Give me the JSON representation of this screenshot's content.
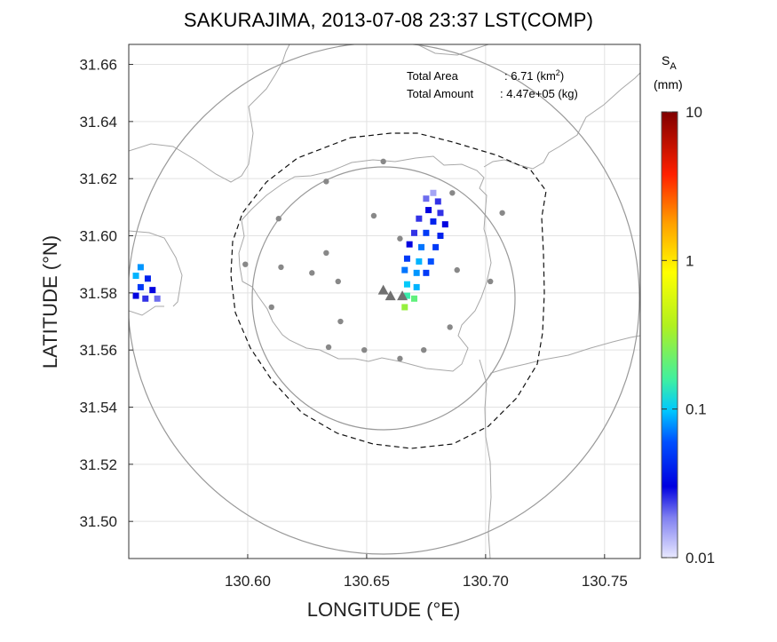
{
  "title": "SAKURAJIMA, 2013-07-08 23:37 LST(COMP)",
  "annotations": {
    "area_label": "Total Area",
    "area_value": ": 6.71 (km",
    "area_exp": "2",
    "area_close": ")",
    "amount_label": "Total Amount",
    "amount_value": ": 4.47e+05 (kg)"
  },
  "colorbar": {
    "title_s": "S",
    "title_sub": "A",
    "unit": "(mm)",
    "ticks": [
      "10",
      "1",
      "0.1",
      "0.01"
    ],
    "scale": "log"
  },
  "chart_data": {
    "type": "heatmap",
    "xlabel": "LONGITUDE (°E)",
    "ylabel": "LATITUDE (°N)",
    "xlim": [
      130.55,
      130.765
    ],
    "ylim": [
      31.487,
      31.667
    ],
    "xticks": [
      "130.60",
      "130.65",
      "130.70",
      "130.75"
    ],
    "yticks": [
      "31.66",
      "31.64",
      "31.62",
      "31.60",
      "31.58",
      "31.56",
      "31.54",
      "31.52",
      "31.50"
    ],
    "grid": true,
    "color_scale": {
      "min": 0.01,
      "max": 10,
      "log": true
    },
    "deposit_cells": [
      {
        "lon": 130.678,
        "lat": 31.615,
        "value": 0.015
      },
      {
        "lon": 130.675,
        "lat": 31.613,
        "value": 0.02
      },
      {
        "lon": 130.68,
        "lat": 31.612,
        "value": 0.025
      },
      {
        "lon": 130.676,
        "lat": 31.609,
        "value": 0.03
      },
      {
        "lon": 130.681,
        "lat": 31.608,
        "value": 0.025
      },
      {
        "lon": 130.672,
        "lat": 31.606,
        "value": 0.025
      },
      {
        "lon": 130.678,
        "lat": 31.605,
        "value": 0.04
      },
      {
        "lon": 130.683,
        "lat": 31.604,
        "value": 0.03
      },
      {
        "lon": 130.67,
        "lat": 31.601,
        "value": 0.025
      },
      {
        "lon": 130.675,
        "lat": 31.601,
        "value": 0.05
      },
      {
        "lon": 130.681,
        "lat": 31.6,
        "value": 0.04
      },
      {
        "lon": 130.668,
        "lat": 31.597,
        "value": 0.03
      },
      {
        "lon": 130.673,
        "lat": 31.596,
        "value": 0.07
      },
      {
        "lon": 130.679,
        "lat": 31.596,
        "value": 0.05
      },
      {
        "lon": 130.667,
        "lat": 31.592,
        "value": 0.05
      },
      {
        "lon": 130.672,
        "lat": 31.591,
        "value": 0.09
      },
      {
        "lon": 130.677,
        "lat": 31.591,
        "value": 0.06
      },
      {
        "lon": 130.666,
        "lat": 31.588,
        "value": 0.07
      },
      {
        "lon": 130.671,
        "lat": 31.587,
        "value": 0.08
      },
      {
        "lon": 130.675,
        "lat": 31.587,
        "value": 0.05
      },
      {
        "lon": 130.667,
        "lat": 31.583,
        "value": 0.1
      },
      {
        "lon": 130.671,
        "lat": 31.582,
        "value": 0.09
      },
      {
        "lon": 130.667,
        "lat": 31.579,
        "value": 0.15
      },
      {
        "lon": 130.67,
        "lat": 31.578,
        "value": 0.2
      },
      {
        "lon": 130.666,
        "lat": 31.575,
        "value": 0.3
      },
      {
        "lon": 130.555,
        "lat": 31.589,
        "value": 0.08
      },
      {
        "lon": 130.553,
        "lat": 31.586,
        "value": 0.09
      },
      {
        "lon": 130.558,
        "lat": 31.585,
        "value": 0.04
      },
      {
        "lon": 130.555,
        "lat": 31.582,
        "value": 0.05
      },
      {
        "lon": 130.56,
        "lat": 31.581,
        "value": 0.03
      },
      {
        "lon": 130.553,
        "lat": 31.579,
        "value": 0.03
      },
      {
        "lon": 130.557,
        "lat": 31.578,
        "value": 0.025
      },
      {
        "lon": 130.562,
        "lat": 31.578,
        "value": 0.02
      }
    ],
    "stations": [
      {
        "lon": 130.657,
        "lat": 31.626
      },
      {
        "lon": 130.633,
        "lat": 31.619
      },
      {
        "lon": 130.686,
        "lat": 31.615
      },
      {
        "lon": 130.707,
        "lat": 31.608
      },
      {
        "lon": 130.613,
        "lat": 31.606
      },
      {
        "lon": 130.653,
        "lat": 31.607
      },
      {
        "lon": 130.664,
        "lat": 31.599
      },
      {
        "lon": 130.633,
        "lat": 31.594
      },
      {
        "lon": 130.599,
        "lat": 31.59
      },
      {
        "lon": 130.614,
        "lat": 31.589
      },
      {
        "lon": 130.627,
        "lat": 31.587
      },
      {
        "lon": 130.638,
        "lat": 31.584
      },
      {
        "lon": 130.688,
        "lat": 31.588
      },
      {
        "lon": 130.702,
        "lat": 31.584
      },
      {
        "lon": 130.61,
        "lat": 31.575
      },
      {
        "lon": 130.639,
        "lat": 31.57
      },
      {
        "lon": 130.685,
        "lat": 31.568
      },
      {
        "lon": 130.634,
        "lat": 31.561
      },
      {
        "lon": 130.649,
        "lat": 31.56
      },
      {
        "lon": 130.674,
        "lat": 31.56
      },
      {
        "lon": 130.664,
        "lat": 31.557
      }
    ],
    "vents": [
      {
        "lon": 130.657,
        "lat": 31.581
      },
      {
        "lon": 130.66,
        "lat": 31.579
      },
      {
        "lon": 130.665,
        "lat": 31.579
      }
    ]
  }
}
